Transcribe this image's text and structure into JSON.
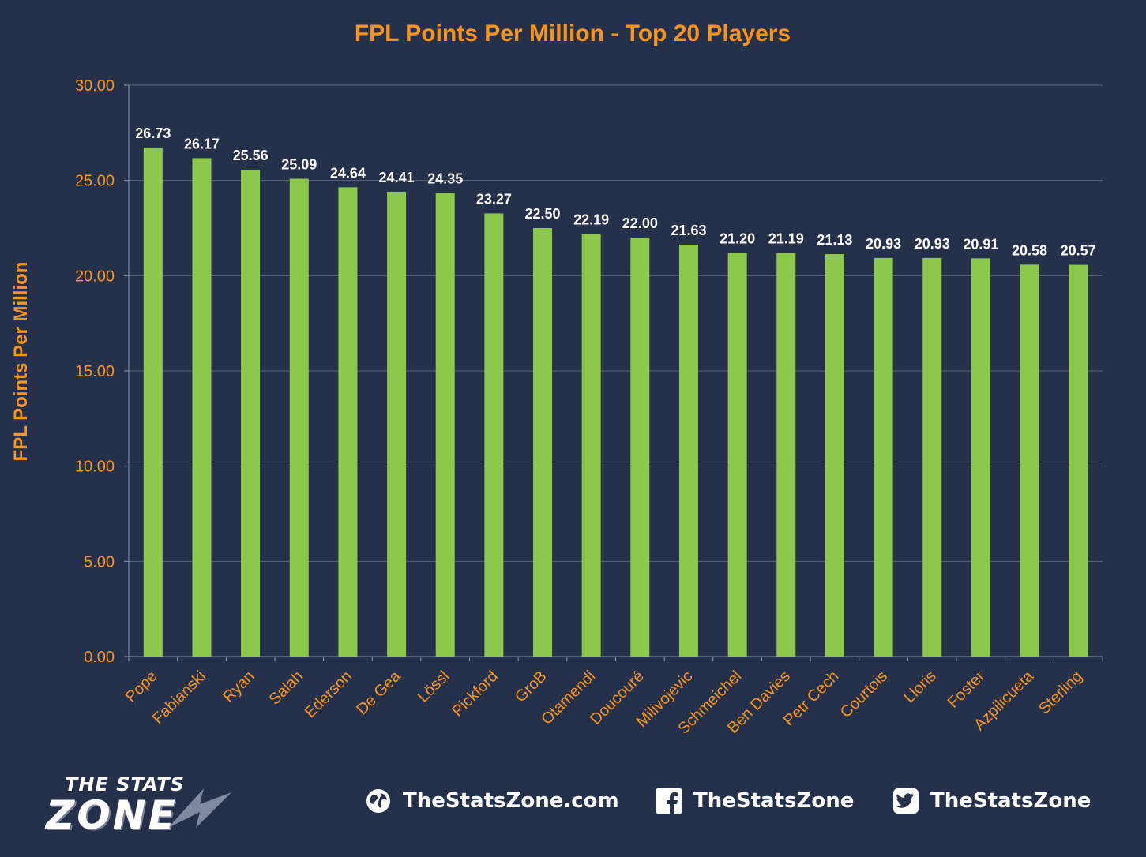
{
  "chart_data": {
    "type": "bar",
    "title": "FPL Points Per Million - Top 20 Players",
    "xlabel": "",
    "ylabel": "FPL Points Per Million",
    "ylim": [
      0,
      30
    ],
    "yticks": [
      "0.00",
      "5.00",
      "10.00",
      "15.00",
      "20.00",
      "25.00",
      "30.00"
    ],
    "grid": true,
    "categories": [
      "Pope",
      "Fabianski",
      "Ryan",
      "Salah",
      "Ederson",
      "De Gea",
      "Lössl",
      "Pickford",
      "GroB",
      "Otamendi",
      "Doucouré",
      "Milivojevic",
      "Schmeichel",
      "Ben Davies",
      "Petr Cech",
      "Courtois",
      "Lloris",
      "Foster",
      "Azpilicueta",
      "Sterling"
    ],
    "values": [
      26.73,
      26.17,
      25.56,
      25.09,
      24.64,
      24.41,
      24.35,
      23.27,
      22.5,
      22.19,
      22.0,
      21.63,
      21.2,
      21.19,
      21.13,
      20.93,
      20.93,
      20.91,
      20.58,
      20.57
    ],
    "value_labels": [
      "26.73",
      "26.17",
      "25.56",
      "25.09",
      "24.64",
      "24.41",
      "24.35",
      "23.27",
      "22.50",
      "22.19",
      "22.00",
      "21.63",
      "21.20",
      "21.19",
      "21.13",
      "20.93",
      "20.93",
      "20.91",
      "20.58",
      "20.57"
    ]
  },
  "colors": {
    "background": "#25304a",
    "bar": "#8cc84b",
    "accent": "#f7941d",
    "grid": "#5a6478",
    "value_label": "#ffffff"
  },
  "footer": {
    "logo_top": "THE STATS",
    "logo_bottom": "ZONE",
    "social": [
      {
        "icon": "globe-icon",
        "label": "TheStatsZone.com"
      },
      {
        "icon": "facebook-icon",
        "label": "TheStatsZone"
      },
      {
        "icon": "twitter-icon",
        "label": "TheStatsZone"
      }
    ]
  }
}
